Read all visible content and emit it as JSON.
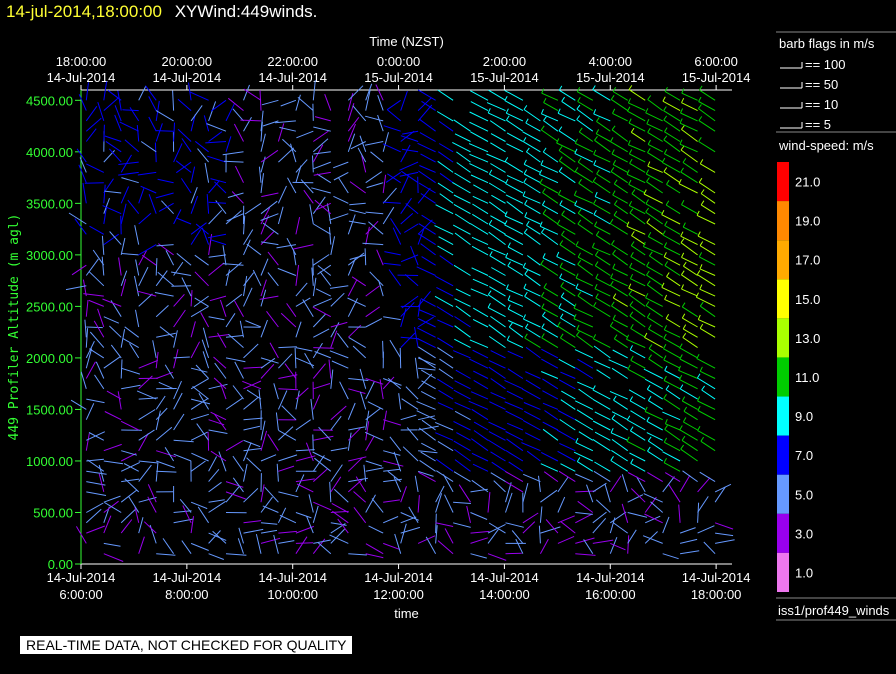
{
  "title": {
    "timestamp": "14-jul-2014,18:00:00",
    "name": "XYWind:449winds."
  },
  "qc_banner": "REAL-TIME DATA, NOT CHECKED FOR QUALITY",
  "source_label": "iss1/prof449_winds",
  "colors": {
    "axis": "#33ff33",
    "text": "#ffffff",
    "background": "#000000"
  },
  "chart_data": {
    "type": "wind-barb",
    "top_axis_title": "Time (NZST)",
    "xlabel": "time",
    "ylabel": "449 Profiler Altitude (m agl)",
    "ylim": [
      0,
      4600
    ],
    "x_hours_range": [
      6,
      18.3
    ],
    "bottom_ticks": [
      {
        "h": 6,
        "date": "14-Jul-2014",
        "time": "6:00:00"
      },
      {
        "h": 8,
        "date": "14-Jul-2014",
        "time": "8:00:00"
      },
      {
        "h": 10,
        "date": "14-Jul-2014",
        "time": "10:00:00"
      },
      {
        "h": 12,
        "date": "14-Jul-2014",
        "time": "12:00:00"
      },
      {
        "h": 14,
        "date": "14-Jul-2014",
        "time": "14:00:00"
      },
      {
        "h": 16,
        "date": "14-Jul-2014",
        "time": "16:00:00"
      },
      {
        "h": 18,
        "date": "14-Jul-2014",
        "time": "18:00:00"
      }
    ],
    "top_ticks": [
      {
        "h": 6,
        "time": "18:00:00",
        "date": "14-Jul-2014"
      },
      {
        "h": 8,
        "time": "20:00:00",
        "date": "14-Jul-2014"
      },
      {
        "h": 10,
        "time": "22:00:00",
        "date": "14-Jul-2014"
      },
      {
        "h": 12,
        "time": "0:00:00",
        "date": "15-Jul-2014"
      },
      {
        "h": 14,
        "time": "2:00:00",
        "date": "15-Jul-2014"
      },
      {
        "h": 16,
        "time": "4:00:00",
        "date": "15-Jul-2014"
      },
      {
        "h": 18,
        "time": "6:00:00",
        "date": "15-Jul-2014"
      }
    ],
    "y_ticks": [
      "0.00",
      "500.00",
      "1000.00",
      "1500.00",
      "2000.00",
      "2500.00",
      "3000.00",
      "3500.00",
      "4000.00",
      "4500.00"
    ],
    "y_tick_values": [
      0,
      500,
      1000,
      1500,
      2000,
      2500,
      3000,
      3500,
      4000,
      4500
    ],
    "barb_legend": {
      "title": "barb flags in m/s",
      "items": [
        "== 100",
        "== 50",
        "== 10",
        "== 5"
      ]
    },
    "colorbar": {
      "title": "wind-speed: m/s",
      "labels": [
        "21.0",
        "19.0",
        "17.0",
        "15.0",
        "13.0",
        "11.0",
        "9.0",
        "7.0",
        "5.0",
        "3.0",
        "1.0"
      ],
      "bands": [
        "#ff0000",
        "#ff8800",
        "#ffaa00",
        "#ffff00",
        "#aaff00",
        "#00cc00",
        "#00ffff",
        "#0000ff",
        "#6699ff",
        "#9900ee",
        "#ee77ee"
      ]
    },
    "time_step_hours": 0.33,
    "altitude_step_m": 100
  }
}
